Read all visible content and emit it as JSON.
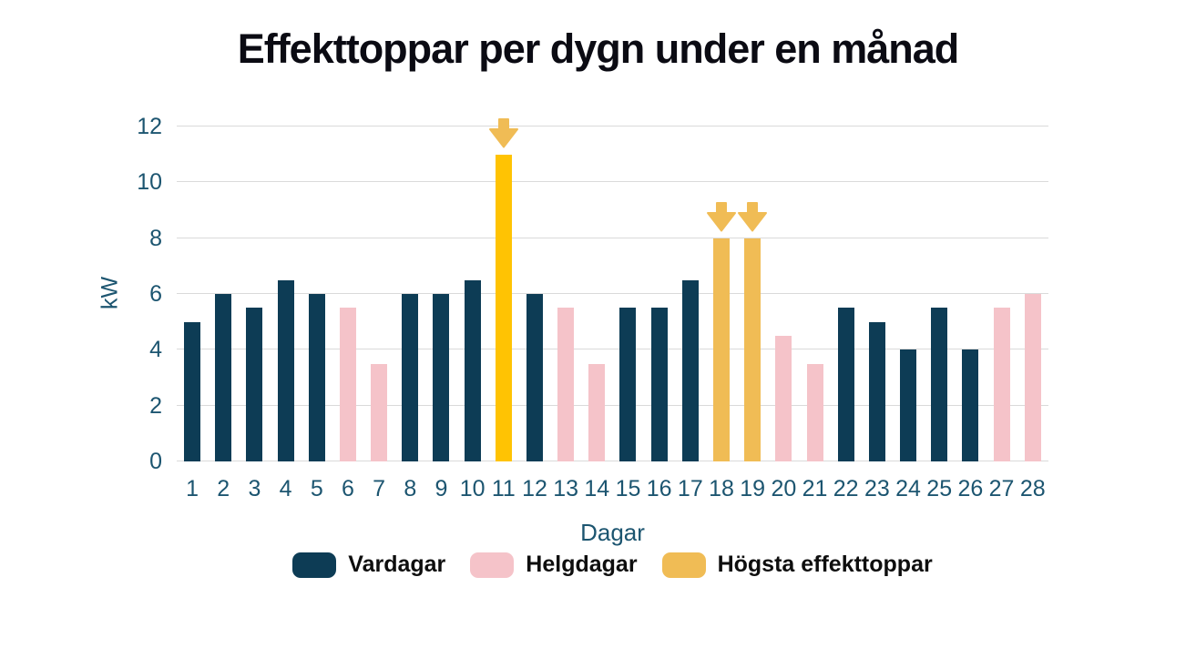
{
  "chart_data": {
    "type": "bar",
    "title": "Effekttoppar per dygn under en månad",
    "xlabel": "Dagar",
    "ylabel": "kW",
    "ylim": [
      0,
      12
    ],
    "yticks": [
      0,
      2,
      4,
      6,
      8,
      10,
      12
    ],
    "grid": true,
    "legend_position": "bottom",
    "categories": [
      1,
      2,
      3,
      4,
      5,
      6,
      7,
      8,
      9,
      10,
      11,
      12,
      13,
      14,
      15,
      16,
      17,
      18,
      19,
      20,
      21,
      22,
      23,
      24,
      25,
      26,
      27,
      28
    ],
    "bars": [
      {
        "day": 1,
        "value": 5,
        "series": "vardagar",
        "arrow": false
      },
      {
        "day": 2,
        "value": 6,
        "series": "vardagar",
        "arrow": false
      },
      {
        "day": 3,
        "value": 5.5,
        "series": "vardagar",
        "arrow": false
      },
      {
        "day": 4,
        "value": 6.5,
        "series": "vardagar",
        "arrow": false
      },
      {
        "day": 5,
        "value": 6,
        "series": "vardagar",
        "arrow": false
      },
      {
        "day": 6,
        "value": 5.5,
        "series": "helgdagar",
        "arrow": false
      },
      {
        "day": 7,
        "value": 3.5,
        "series": "helgdagar",
        "arrow": false
      },
      {
        "day": 8,
        "value": 6,
        "series": "vardagar",
        "arrow": false
      },
      {
        "day": 9,
        "value": 6,
        "series": "vardagar",
        "arrow": false
      },
      {
        "day": 10,
        "value": 6.5,
        "series": "vardagar",
        "arrow": false
      },
      {
        "day": 11,
        "value": 11,
        "series": "hogsta",
        "arrow": true,
        "color": "#ffc303"
      },
      {
        "day": 12,
        "value": 6,
        "series": "vardagar",
        "arrow": false
      },
      {
        "day": 13,
        "value": 5.5,
        "series": "helgdagar",
        "arrow": false
      },
      {
        "day": 14,
        "value": 3.5,
        "series": "helgdagar",
        "arrow": false
      },
      {
        "day": 15,
        "value": 5.5,
        "series": "vardagar",
        "arrow": false
      },
      {
        "day": 16,
        "value": 5.5,
        "series": "vardagar",
        "arrow": false
      },
      {
        "day": 17,
        "value": 6.5,
        "series": "vardagar",
        "arrow": false
      },
      {
        "day": 18,
        "value": 8,
        "series": "hogsta",
        "arrow": true
      },
      {
        "day": 19,
        "value": 8,
        "series": "hogsta",
        "arrow": true
      },
      {
        "day": 20,
        "value": 4.5,
        "series": "helgdagar",
        "arrow": false
      },
      {
        "day": 21,
        "value": 3.5,
        "series": "helgdagar",
        "arrow": false
      },
      {
        "day": 22,
        "value": 5.5,
        "series": "vardagar",
        "arrow": false
      },
      {
        "day": 23,
        "value": 5,
        "series": "vardagar",
        "arrow": false
      },
      {
        "day": 24,
        "value": 4,
        "series": "vardagar",
        "arrow": false
      },
      {
        "day": 25,
        "value": 5.5,
        "series": "vardagar",
        "arrow": false
      },
      {
        "day": 26,
        "value": 4,
        "series": "vardagar",
        "arrow": false
      },
      {
        "day": 27,
        "value": 5.5,
        "series": "helgdagar",
        "arrow": false
      },
      {
        "day": 28,
        "value": 6,
        "series": "helgdagar",
        "arrow": false
      }
    ],
    "legend": [
      {
        "key": "vardagar",
        "label": "Vardagar",
        "color": "#0d3c55"
      },
      {
        "key": "helgdagar",
        "label": "Helgdagar",
        "color": "#f5c3c9"
      },
      {
        "key": "hogsta",
        "label": "Högsta effekttoppar",
        "color": "#f0bc55"
      }
    ],
    "colors": {
      "vardagar": "#0d3c55",
      "helgdagar": "#f5c3c9",
      "hogsta": "#f0bc55",
      "hogsta_bright": "#ffc303",
      "arrow": "#f0bc55",
      "grid": "#dadada",
      "tick_text": "#1c5570",
      "title_text": "#0b0b13",
      "legend_text": "#0e0e0e"
    }
  }
}
